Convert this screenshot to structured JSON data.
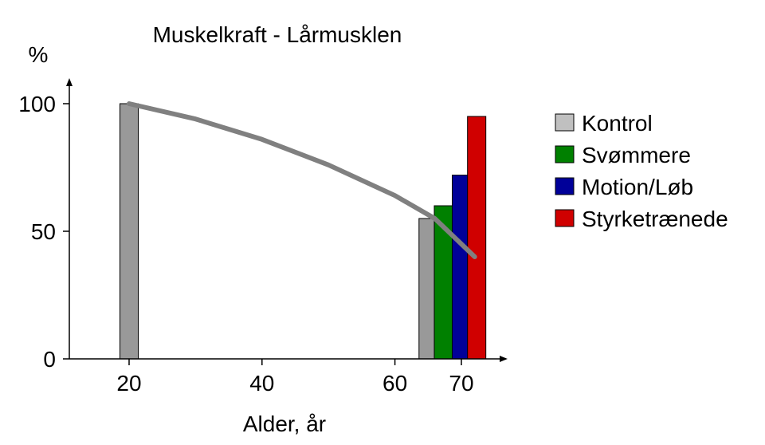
{
  "chart_data": {
    "type": "bar",
    "title": "Muskelkraft - Lårmusklen",
    "ylabel": "%",
    "xlabel": "Alder,  år",
    "ylim": [
      0,
      100
    ],
    "xlim": [
      9,
      76
    ],
    "yticks": [
      0,
      50,
      100
    ],
    "xticks": [
      20,
      40,
      60,
      70
    ],
    "legend_position": "right",
    "series": [
      {
        "name": "Kontrol",
        "color": "#999999",
        "swatch": "#c0c0c0",
        "points": [
          {
            "x": 20,
            "y": 100
          },
          {
            "x": 65,
            "y": 55
          }
        ]
      },
      {
        "name": "Svømmere",
        "color": "#008000",
        "swatch": "#008000",
        "points": [
          {
            "x": 67.3,
            "y": 60
          }
        ]
      },
      {
        "name": "Motion/Løb",
        "color": "#000099",
        "swatch": "#000099",
        "points": [
          {
            "x": 70,
            "y": 72
          }
        ]
      },
      {
        "name": "Styrketrænede",
        "color": "#d00000",
        "swatch": "#d00000",
        "points": [
          {
            "x": 72.3,
            "y": 95
          }
        ]
      }
    ],
    "trend_line": {
      "color": "#808080",
      "points": [
        [
          20,
          100
        ],
        [
          30,
          94
        ],
        [
          40,
          86
        ],
        [
          50,
          76
        ],
        [
          60,
          64
        ],
        [
          66,
          55
        ],
        [
          72,
          40
        ]
      ]
    }
  }
}
